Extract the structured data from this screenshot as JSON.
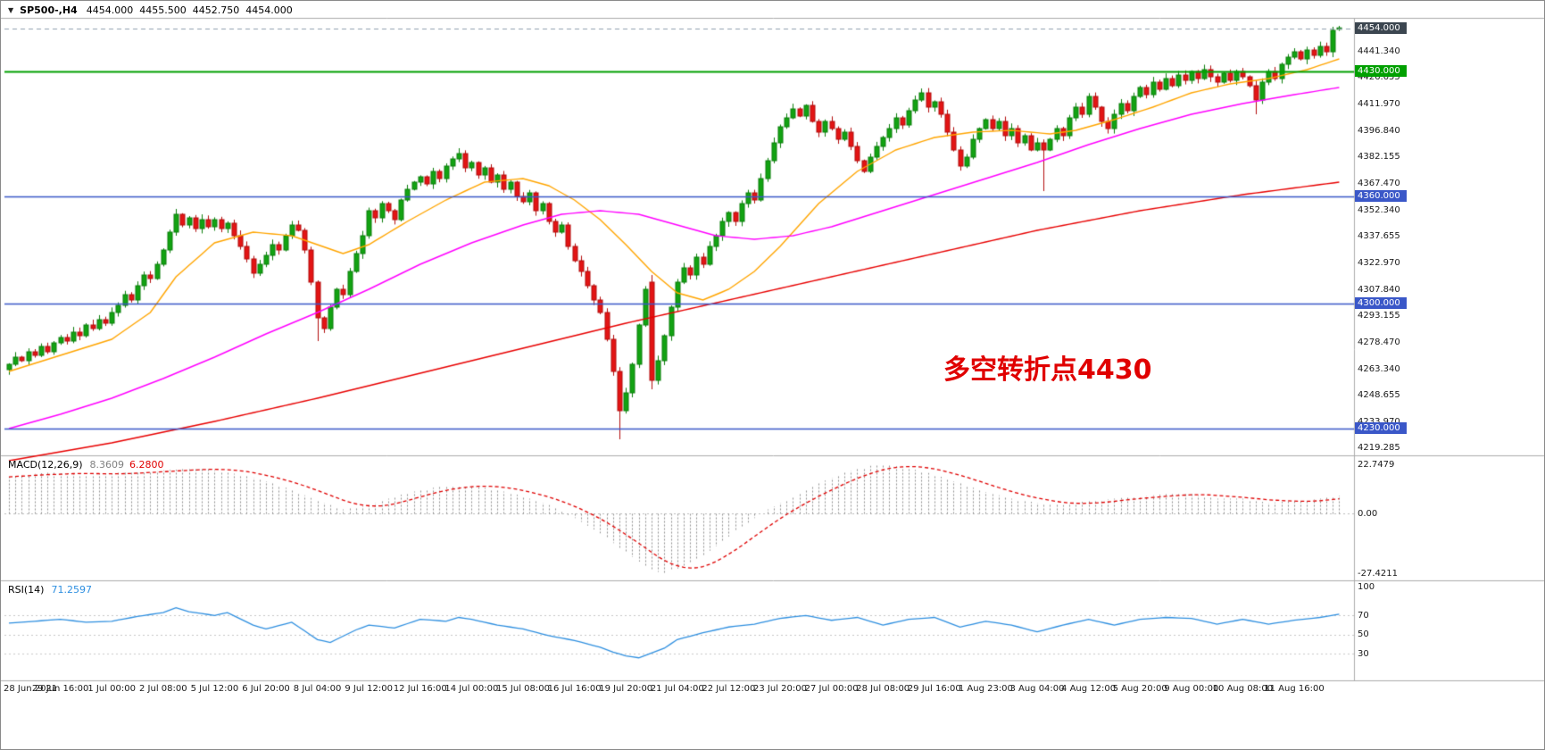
{
  "header": {
    "marker": "▼",
    "symbol_timeframe": "SP500-,H4",
    "open": "4454.000",
    "high": "4455.500",
    "low": "4452.750",
    "close": "4454.000"
  },
  "annotation": {
    "text": "多空转折点4430"
  },
  "colors": {
    "bull": "#12a312",
    "bull_border": "#0a7e0a",
    "bear": "#e31414",
    "bear_border": "#b20c0c",
    "ma_fast": "#ffa500",
    "ma_mid": "#ff00ff",
    "ma_slow": "#e80000",
    "hline_blue": "#3a57c8",
    "hline_green": "#00a000",
    "current_price_line": "#8fa0b0",
    "current_price_box": "#3c4650",
    "macd_hist": "#909090",
    "macd_signal": "#e00000",
    "rsi_line": "#2e8fe0",
    "annotation": "#e00000"
  },
  "chart_data": {
    "type": "candlestick",
    "title": "SP500-,H4",
    "symbol": "SP500-",
    "timeframe": "H4",
    "y_range": {
      "min": 4216.0,
      "max": 4459.5
    },
    "price_axis_ticks": [
      "4441.340",
      "4426.655",
      "4411.970",
      "4396.840",
      "4382.155",
      "4367.470",
      "4352.340",
      "4337.655",
      "4322.970",
      "4307.840",
      "4293.155",
      "4278.470",
      "4263.340",
      "4248.655",
      "4233.970",
      "4219.285"
    ],
    "x_labels": [
      "28 Jun 2021",
      "29 Jun 16:00",
      "1 Jul 00:00",
      "2 Jul 08:00",
      "5 Jul 12:00",
      "6 Jul 20:00",
      "8 Jul 04:00",
      "9 Jul 12:00",
      "12 Jul 16:00",
      "14 Jul 00:00",
      "15 Jul 08:00",
      "16 Jul 16:00",
      "19 Jul 20:00",
      "21 Jul 04:00",
      "22 Jul 12:00",
      "23 Jul 20:00",
      "27 Jul 00:00",
      "28 Jul 08:00",
      "29 Jul 16:00",
      "1 Aug 23:00",
      "3 Aug 04:00",
      "4 Aug 12:00",
      "5 Aug 20:00",
      "9 Aug 00:00",
      "10 Aug 08:00",
      "11 Aug 16:00"
    ],
    "bars_per_x_label": 8,
    "closes": [
      4266,
      4270,
      4268,
      4273,
      4271,
      4276,
      4273,
      4278,
      4281,
      4279,
      4284,
      4282,
      4288,
      4286,
      4291,
      4289,
      4295,
      4299,
      4305,
      4302,
      4310,
      4316,
      4314,
      4322,
      4330,
      4340,
      4350,
      4344,
      4348,
      4342,
      4347,
      4343,
      4347,
      4342,
      4345,
      4338,
      4332,
      4325,
      4317,
      4322,
      4327,
      4333,
      4330,
      4338,
      4344,
      4341,
      4330,
      4312,
      4292,
      4286,
      4298,
      4308,
      4305,
      4318,
      4328,
      4338,
      4352,
      4348,
      4356,
      4352,
      4347,
      4358,
      4364,
      4368,
      4371,
      4367,
      4374,
      4370,
      4377,
      4381,
      4384,
      4376,
      4379,
      4372,
      4376,
      4368,
      4372,
      4364,
      4368,
      4360,
      4357,
      4362,
      4352,
      4356,
      4346,
      4340,
      4344,
      4332,
      4324,
      4318,
      4310,
      4302,
      4295,
      4280,
      4262,
      4240,
      4250,
      4266,
      4288,
      4308,
      4257,
      4268,
      4282,
      4298,
      4312,
      4320,
      4316,
      4326,
      4322,
      4332,
      4338,
      4346,
      4351,
      4346,
      4356,
      4362,
      4358,
      4370,
      4380,
      4390,
      4399,
      4404,
      4409,
      4405,
      4411,
      4402,
      4396,
      4402,
      4398,
      4392,
      4396,
      4388,
      4380,
      4374,
      4382,
      4388,
      4393,
      4398,
      4404,
      4400,
      4408,
      4414,
      4418,
      4410,
      4413,
      4406,
      4396,
      4386,
      4377,
      4382,
      4392,
      4398,
      4403,
      4398,
      4402,
      4394,
      4398,
      4390,
      4394,
      4386,
      4390,
      4386,
      4392,
      4398,
      4394,
      4404,
      4410,
      4406,
      4416,
      4410,
      4402,
      4398,
      4406,
      4412,
      4408,
      4416,
      4421,
      4417,
      4424,
      4420,
      4426,
      4422,
      4428,
      4425,
      4430,
      4426,
      4431,
      4427,
      4424,
      4429,
      4425,
      4430,
      4427,
      4422,
      4414,
      4424,
      4430,
      4426,
      4434,
      4438,
      4441,
      4437,
      4442,
      4439,
      4444,
      4441,
      4453,
      4454
    ],
    "bar_overrides": {
      "26": {
        "high": 4353
      },
      "48": {
        "low": 4279
      },
      "70": {
        "high": 4387
      },
      "95": {
        "low": 4224
      },
      "100": {
        "open": 4312,
        "high": 4316,
        "low": 4252
      },
      "161": {
        "low": 4363
      },
      "194": {
        "low": 4406
      },
      "206": {
        "open": 4441,
        "high": 4455,
        "low": 4438
      },
      "207": {
        "open": 4454,
        "high": 4455.5,
        "low": 4452.75
      }
    },
    "horizontal_lines": [
      {
        "price": 4454.0,
        "label": "4454.000",
        "style": "current"
      },
      {
        "price": 4430.0,
        "label": "4430.000",
        "style": "green"
      },
      {
        "price": 4360.0,
        "label": "4360.000",
        "style": "blue"
      },
      {
        "price": 4300.0,
        "label": "4300.000",
        "style": "blue"
      },
      {
        "price": 4230.0,
        "label": "4230.000",
        "style": "blue"
      }
    ],
    "moving_averages": [
      {
        "name": "ma-fast-orange",
        "color_key": "ma_fast",
        "anchors": [
          [
            0,
            4262
          ],
          [
            8,
            4271
          ],
          [
            16,
            4280
          ],
          [
            22,
            4295
          ],
          [
            26,
            4315
          ],
          [
            32,
            4334
          ],
          [
            38,
            4340
          ],
          [
            44,
            4338
          ],
          [
            48,
            4333
          ],
          [
            52,
            4328
          ],
          [
            56,
            4333
          ],
          [
            62,
            4346
          ],
          [
            68,
            4358
          ],
          [
            74,
            4368
          ],
          [
            80,
            4370
          ],
          [
            84,
            4366
          ],
          [
            88,
            4358
          ],
          [
            92,
            4347
          ],
          [
            96,
            4333
          ],
          [
            100,
            4318
          ],
          [
            104,
            4306
          ],
          [
            108,
            4302
          ],
          [
            112,
            4308
          ],
          [
            116,
            4318
          ],
          [
            120,
            4332
          ],
          [
            126,
            4356
          ],
          [
            132,
            4374
          ],
          [
            138,
            4386
          ],
          [
            144,
            4393
          ],
          [
            150,
            4396
          ],
          [
            156,
            4397
          ],
          [
            162,
            4395
          ],
          [
            166,
            4397
          ],
          [
            172,
            4403
          ],
          [
            178,
            4410
          ],
          [
            184,
            4418
          ],
          [
            190,
            4423
          ],
          [
            196,
            4426
          ],
          [
            202,
            4431
          ],
          [
            207,
            4437
          ]
        ]
      },
      {
        "name": "ma-mid-magenta",
        "color_key": "ma_mid",
        "anchors": [
          [
            0,
            4230
          ],
          [
            8,
            4238
          ],
          [
            16,
            4247
          ],
          [
            24,
            4258
          ],
          [
            32,
            4270
          ],
          [
            40,
            4283
          ],
          [
            48,
            4295
          ],
          [
            56,
            4308
          ],
          [
            64,
            4322
          ],
          [
            72,
            4334
          ],
          [
            80,
            4344
          ],
          [
            86,
            4350
          ],
          [
            92,
            4352
          ],
          [
            98,
            4350
          ],
          [
            104,
            4344
          ],
          [
            110,
            4338
          ],
          [
            116,
            4336
          ],
          [
            122,
            4338
          ],
          [
            128,
            4343
          ],
          [
            136,
            4352
          ],
          [
            144,
            4361
          ],
          [
            152,
            4370
          ],
          [
            160,
            4379
          ],
          [
            168,
            4389
          ],
          [
            176,
            4398
          ],
          [
            184,
            4406
          ],
          [
            192,
            4412
          ],
          [
            200,
            4417
          ],
          [
            207,
            4421
          ]
        ]
      },
      {
        "name": "ma-slow-red",
        "color_key": "ma_slow",
        "anchors": [
          [
            0,
            4212
          ],
          [
            16,
            4222
          ],
          [
            32,
            4234
          ],
          [
            48,
            4247
          ],
          [
            64,
            4261
          ],
          [
            80,
            4275
          ],
          [
            96,
            4289
          ],
          [
            112,
            4302
          ],
          [
            128,
            4315
          ],
          [
            144,
            4328
          ],
          [
            160,
            4341
          ],
          [
            176,
            4352
          ],
          [
            192,
            4361
          ],
          [
            207,
            4368
          ]
        ]
      }
    ],
    "indicators": {
      "macd": {
        "name": "MACD(12,26,9)",
        "main_value": "8.3609",
        "signal_value": "6.2800",
        "scale_labels": [
          "22.7479",
          "0.00",
          "-27.4211"
        ],
        "range": {
          "min": -29,
          "max": 24
        },
        "main_anchors": [
          [
            0,
            17
          ],
          [
            6,
            19
          ],
          [
            12,
            18
          ],
          [
            18,
            19
          ],
          [
            24,
            20
          ],
          [
            30,
            21
          ],
          [
            36,
            18
          ],
          [
            40,
            15
          ],
          [
            44,
            11
          ],
          [
            48,
            6
          ],
          [
            52,
            2
          ],
          [
            56,
            4
          ],
          [
            60,
            8
          ],
          [
            64,
            11
          ],
          [
            68,
            13
          ],
          [
            72,
            13
          ],
          [
            76,
            11
          ],
          [
            80,
            8
          ],
          [
            84,
            4
          ],
          [
            88,
            -2
          ],
          [
            92,
            -9
          ],
          [
            96,
            -18
          ],
          [
            100,
            -26
          ],
          [
            102,
            -27.4
          ],
          [
            106,
            -23
          ],
          [
            110,
            -15
          ],
          [
            114,
            -6
          ],
          [
            118,
            2
          ],
          [
            122,
            8
          ],
          [
            126,
            14
          ],
          [
            130,
            19
          ],
          [
            134,
            22
          ],
          [
            136,
            22.7
          ],
          [
            140,
            21
          ],
          [
            144,
            18
          ],
          [
            148,
            14
          ],
          [
            152,
            10
          ],
          [
            156,
            7
          ],
          [
            160,
            5
          ],
          [
            164,
            4
          ],
          [
            168,
            6
          ],
          [
            172,
            7
          ],
          [
            176,
            8
          ],
          [
            180,
            9
          ],
          [
            184,
            9
          ],
          [
            188,
            7
          ],
          [
            192,
            7
          ],
          [
            196,
            5
          ],
          [
            200,
            6
          ],
          [
            204,
            7
          ],
          [
            207,
            8.36
          ]
        ]
      },
      "rsi": {
        "name": "RSI(14)",
        "value": "71.2597",
        "scale_labels": [
          "100",
          "70",
          "50",
          "30"
        ],
        "levels": [
          70,
          50,
          30
        ],
        "range": {
          "min": 10,
          "max": 100
        },
        "anchors": [
          [
            0,
            62
          ],
          [
            4,
            64
          ],
          [
            8,
            66
          ],
          [
            12,
            63
          ],
          [
            16,
            64
          ],
          [
            20,
            69
          ],
          [
            24,
            73
          ],
          [
            26,
            78
          ],
          [
            28,
            74
          ],
          [
            32,
            70
          ],
          [
            34,
            73
          ],
          [
            38,
            60
          ],
          [
            40,
            56
          ],
          [
            44,
            63
          ],
          [
            48,
            45
          ],
          [
            50,
            42
          ],
          [
            54,
            55
          ],
          [
            56,
            60
          ],
          [
            60,
            57
          ],
          [
            64,
            66
          ],
          [
            68,
            64
          ],
          [
            70,
            68
          ],
          [
            72,
            66
          ],
          [
            76,
            60
          ],
          [
            80,
            56
          ],
          [
            84,
            49
          ],
          [
            88,
            44
          ],
          [
            92,
            37
          ],
          [
            94,
            32
          ],
          [
            96,
            28
          ],
          [
            98,
            26
          ],
          [
            100,
            31
          ],
          [
            102,
            36
          ],
          [
            104,
            45
          ],
          [
            108,
            52
          ],
          [
            112,
            58
          ],
          [
            116,
            61
          ],
          [
            120,
            67
          ],
          [
            124,
            70
          ],
          [
            128,
            65
          ],
          [
            132,
            68
          ],
          [
            136,
            60
          ],
          [
            140,
            66
          ],
          [
            144,
            68
          ],
          [
            148,
            58
          ],
          [
            152,
            64
          ],
          [
            156,
            60
          ],
          [
            160,
            53
          ],
          [
            164,
            60
          ],
          [
            168,
            66
          ],
          [
            172,
            60
          ],
          [
            176,
            66
          ],
          [
            180,
            68
          ],
          [
            184,
            67
          ],
          [
            188,
            61
          ],
          [
            192,
            66
          ],
          [
            196,
            61
          ],
          [
            200,
            65
          ],
          [
            204,
            68
          ],
          [
            207,
            71.26
          ]
        ]
      }
    }
  }
}
